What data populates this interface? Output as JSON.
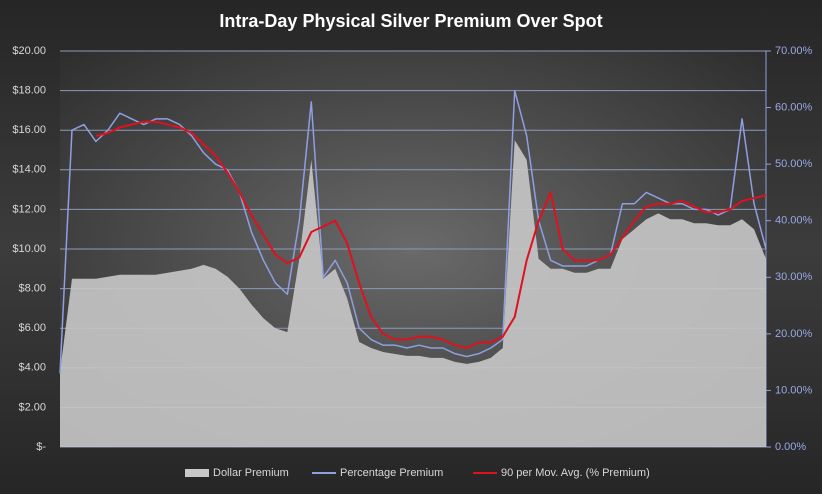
{
  "chart_data": {
    "type": "combo",
    "title": "Intra-Day  Physical  Silver  Premium  Over  Spot",
    "ylim": [
      0,
      20
    ],
    "yticks": [
      {
        "value": 0,
        "label": "$-"
      },
      {
        "value": 2,
        "label": "$2.00"
      },
      {
        "value": 4,
        "label": "$4.00"
      },
      {
        "value": 6,
        "label": "$6.00"
      },
      {
        "value": 8,
        "label": "$8.00"
      },
      {
        "value": 10,
        "label": "$10.00"
      },
      {
        "value": 12,
        "label": "$12.00"
      },
      {
        "value": 14,
        "label": "$14.00"
      },
      {
        "value": 16,
        "label": "$16.00"
      },
      {
        "value": 18,
        "label": "$18.00"
      },
      {
        "value": 20,
        "label": "$20.00"
      }
    ],
    "y2lim": [
      0,
      70
    ],
    "y2ticks": [
      {
        "value": 0,
        "label": "0.00%"
      },
      {
        "value": 10,
        "label": "10.00%"
      },
      {
        "value": 20,
        "label": "20.00%"
      },
      {
        "value": 30,
        "label": "30.00%"
      },
      {
        "value": 40,
        "label": "40.00%"
      },
      {
        "value": 50,
        "label": "50.00%"
      },
      {
        "value": 60,
        "label": "60.00%"
      },
      {
        "value": 70,
        "label": "70.00%"
      }
    ],
    "grid": true,
    "legend": "bottom",
    "series": [
      {
        "name": "Dollar Premium",
        "kind": "area",
        "color": "#c8c8c8",
        "values": [
          3.8,
          8.5,
          8.5,
          8.5,
          8.6,
          8.7,
          8.7,
          8.7,
          8.7,
          8.8,
          8.9,
          9.0,
          9.2,
          9.0,
          8.6,
          8.0,
          7.2,
          6.5,
          6.0,
          5.8,
          9.5,
          14.5,
          8.5,
          9.0,
          7.5,
          5.3,
          5.0,
          4.8,
          4.7,
          4.6,
          4.6,
          4.5,
          4.5,
          4.3,
          4.2,
          4.3,
          4.5,
          5.0,
          15.5,
          14.5,
          9.5,
          9.0,
          9.0,
          8.8,
          8.8,
          9.0,
          9.0,
          10.5,
          11.0,
          11.5,
          11.8,
          11.5,
          11.5,
          11.3,
          11.3,
          11.2,
          11.2,
          11.5,
          11.0,
          9.5
        ]
      },
      {
        "name": "Percentage Premium",
        "kind": "line",
        "axis": "y2",
        "color": "#8f9fe0",
        "values": [
          13,
          56,
          57,
          54,
          56,
          59,
          58,
          57,
          58,
          58,
          57,
          55,
          52,
          50,
          49,
          45,
          38,
          33,
          29,
          27,
          40,
          61,
          30,
          33,
          29,
          21,
          19,
          18,
          18,
          17.5,
          18,
          17.5,
          17.5,
          16.5,
          16,
          16.5,
          17.5,
          19,
          63,
          55,
          40,
          33,
          32,
          32,
          32,
          33,
          34,
          43,
          43,
          45,
          44,
          43,
          43,
          42,
          42,
          41,
          42,
          58,
          43,
          35
        ]
      },
      {
        "name": "90 per Mov. Avg. (% Premium)",
        "kind": "line",
        "axis": "y2",
        "color": "#e0101e",
        "values": [
          null,
          null,
          null,
          55,
          55.5,
          56.5,
          57,
          57.5,
          57.5,
          57,
          56.5,
          55.5,
          53.5,
          51.5,
          48.5,
          45,
          41,
          37.5,
          34,
          32.5,
          33.5,
          38,
          39,
          40,
          36,
          29,
          23,
          20,
          19,
          19,
          19.5,
          19.5,
          19,
          18,
          17.5,
          18.5,
          18.5,
          19.5,
          23,
          33,
          40,
          45,
          35,
          33,
          33,
          33,
          34,
          37,
          40,
          42.5,
          43,
          43,
          43.5,
          42.5,
          41.5,
          41.5,
          42,
          43.5,
          44,
          44.5
        ]
      }
    ]
  }
}
